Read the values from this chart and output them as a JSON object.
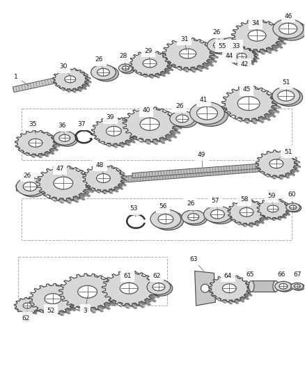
{
  "background_color": "#ffffff",
  "line_color": "#333333",
  "label_color": "#111111",
  "fig_width": 4.38,
  "fig_height": 5.33,
  "dpi": 100,
  "gear_fill": "#d8d8d8",
  "gear_stroke": "#444444",
  "shaft_color": "#888888"
}
